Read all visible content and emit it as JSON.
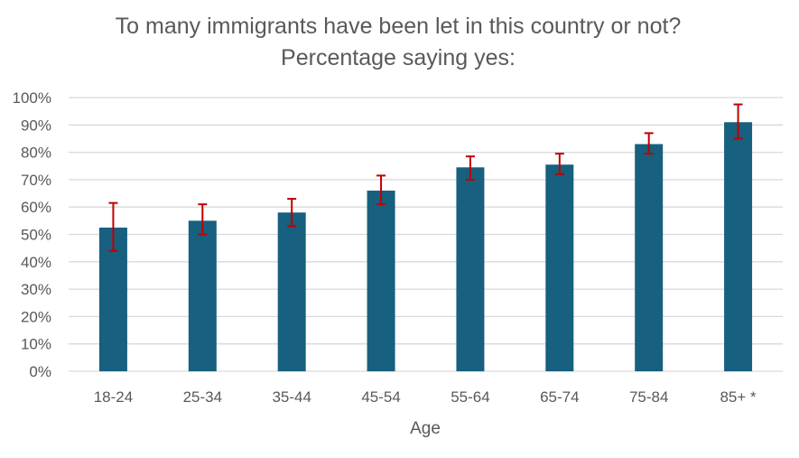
{
  "chart_data": {
    "type": "bar",
    "title_lines": [
      "To many immigrants have been let in this country or not?",
      "Percentage saying yes:"
    ],
    "xlabel": "Age",
    "ylabel": "",
    "categories": [
      "18-24",
      "25-34",
      "35-44",
      "45-54",
      "55-64",
      "65-74",
      "75-84",
      "85+ *"
    ],
    "values": [
      52.5,
      55,
      58,
      66,
      74.5,
      75.5,
      83,
      91
    ],
    "error_low": [
      44,
      50,
      53,
      61,
      70,
      72,
      79.5,
      85
    ],
    "error_high": [
      61.5,
      61,
      63,
      71.5,
      78.5,
      79.5,
      87,
      97.5
    ],
    "ylim": [
      0,
      100
    ],
    "yticks": [
      0,
      10,
      20,
      30,
      40,
      50,
      60,
      70,
      80,
      90,
      100
    ],
    "ytick_labels": [
      "0%",
      "10%",
      "20%",
      "30%",
      "40%",
      "50%",
      "60%",
      "70%",
      "80%",
      "90%",
      "100%"
    ],
    "grid": true,
    "bar_color": "#17607f",
    "error_color": "#c00000"
  }
}
